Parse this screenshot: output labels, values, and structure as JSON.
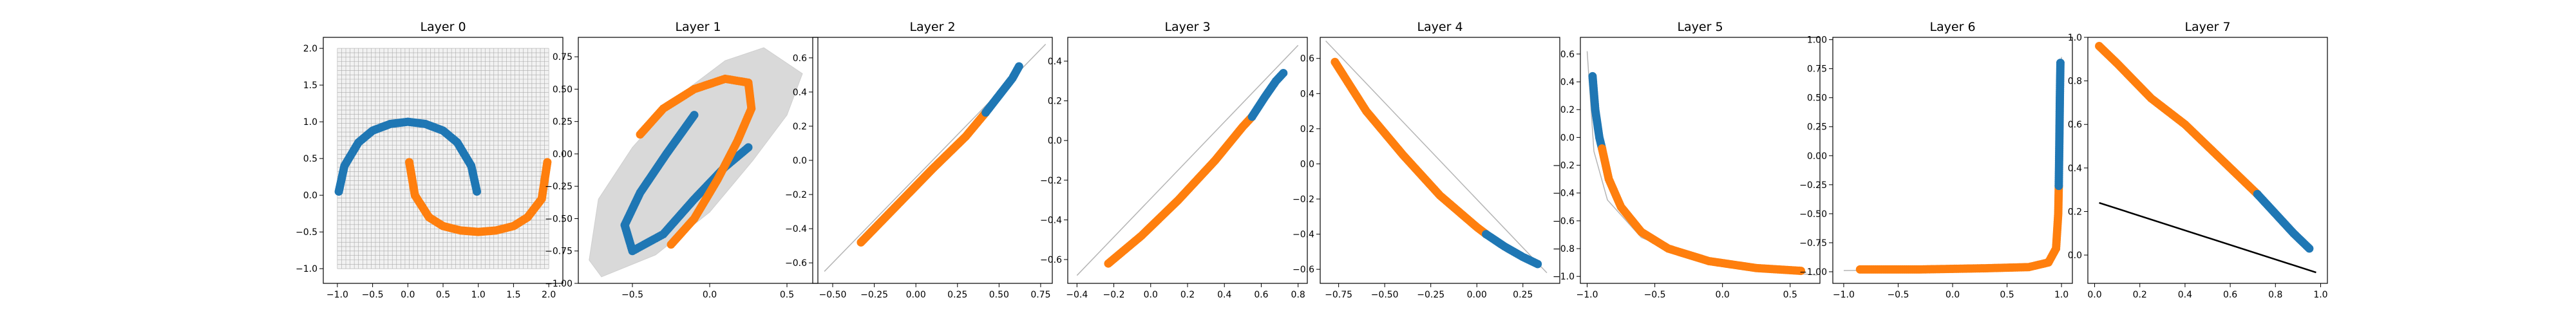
{
  "figure": {
    "colors": {
      "class_a": "#1f77b4",
      "class_b": "#ff7f0e",
      "grid_fill": "#d9d9d9",
      "grid_line": "#aaaaaa",
      "boundary": "#000000"
    }
  },
  "chart_data": [
    {
      "type": "scatter",
      "title": "Layer 0",
      "xlim": [
        -1.2,
        2.2
      ],
      "ylim": [
        -1.2,
        2.15
      ],
      "xticks": [
        -1.0,
        -0.5,
        0.0,
        0.5,
        1.0,
        1.5,
        2.0
      ],
      "xtick_labels": [
        "−1.0",
        "−0.5",
        "0.0",
        "0.5",
        "1.0",
        "1.5",
        "2.0"
      ],
      "yticks": [
        -1.0,
        -0.5,
        0.0,
        0.5,
        1.0,
        1.5,
        2.0
      ],
      "ytick_labels": [
        "−1.0",
        "−0.5",
        "0.0",
        "0.5",
        "1.0",
        "1.5",
        "2.0"
      ],
      "grid_region": {
        "x": [
          -1.0,
          2.0
        ],
        "y": [
          -1.0,
          2.0
        ]
      },
      "series": [
        {
          "color": "blue",
          "points": [
            [
              -0.98,
              0.05
            ],
            [
              -0.9,
              0.4
            ],
            [
              -0.7,
              0.72
            ],
            [
              -0.5,
              0.88
            ],
            [
              -0.25,
              0.97
            ],
            [
              0.0,
              1.0
            ],
            [
              0.25,
              0.97
            ],
            [
              0.5,
              0.88
            ],
            [
              0.7,
              0.72
            ],
            [
              0.9,
              0.4
            ],
            [
              0.98,
              0.05
            ]
          ]
        },
        {
          "color": "orange",
          "points": [
            [
              0.02,
              0.45
            ],
            [
              0.1,
              0.0
            ],
            [
              0.3,
              -0.3
            ],
            [
              0.5,
              -0.42
            ],
            [
              0.75,
              -0.48
            ],
            [
              1.0,
              -0.5
            ],
            [
              1.25,
              -0.48
            ],
            [
              1.5,
              -0.42
            ],
            [
              1.7,
              -0.3
            ],
            [
              1.9,
              -0.05
            ],
            [
              1.98,
              0.45
            ]
          ]
        }
      ]
    },
    {
      "type": "scatter",
      "title": "Layer 1",
      "xlim": [
        -0.85,
        0.7
      ],
      "ylim": [
        -1.0,
        0.9
      ],
      "xticks": [
        -0.5,
        0.0,
        0.5
      ],
      "xtick_labels": [
        "−0.5",
        "0.0",
        "0.5"
      ],
      "yticks": [
        -1.0,
        -0.75,
        -0.5,
        -0.25,
        0.0,
        0.25,
        0.5,
        0.75
      ],
      "ytick_labels": [
        "−1.00",
        "−0.75",
        "−0.50",
        "−0.25",
        "0.00",
        "0.25",
        "0.50",
        "0.75"
      ],
      "grid_polygon": [
        [
          -0.78,
          -0.82
        ],
        [
          -0.72,
          -0.35
        ],
        [
          -0.5,
          0.05
        ],
        [
          -0.2,
          0.45
        ],
        [
          0.1,
          0.72
        ],
        [
          0.35,
          0.82
        ],
        [
          0.6,
          0.62
        ],
        [
          0.5,
          0.3
        ],
        [
          0.28,
          -0.05
        ],
        [
          0.0,
          -0.45
        ],
        [
          -0.35,
          -0.78
        ],
        [
          -0.7,
          -0.95
        ]
      ],
      "series": [
        {
          "color": "blue",
          "points": [
            [
              -0.1,
              0.3
            ],
            [
              -0.28,
              0.0
            ],
            [
              -0.45,
              -0.3
            ],
            [
              -0.55,
              -0.55
            ],
            [
              -0.5,
              -0.75
            ],
            [
              -0.3,
              -0.62
            ],
            [
              -0.1,
              -0.35
            ],
            [
              0.1,
              -0.1
            ],
            [
              0.25,
              0.05
            ]
          ]
        },
        {
          "color": "orange",
          "points": [
            [
              -0.45,
              0.15
            ],
            [
              -0.3,
              0.35
            ],
            [
              -0.1,
              0.5
            ],
            [
              0.1,
              0.58
            ],
            [
              0.25,
              0.55
            ],
            [
              0.27,
              0.35
            ],
            [
              0.18,
              0.1
            ],
            [
              0.05,
              -0.2
            ],
            [
              -0.1,
              -0.5
            ],
            [
              -0.25,
              -0.7
            ]
          ]
        }
      ]
    },
    {
      "type": "line",
      "title": "Layer 2",
      "xlim": [
        -0.62,
        0.82
      ],
      "ylim": [
        -0.72,
        0.72
      ],
      "xticks": [
        -0.5,
        -0.25,
        0.0,
        0.25,
        0.5,
        0.75
      ],
      "xtick_labels": [
        "−0.50",
        "−0.25",
        "0.00",
        "0.25",
        "0.50",
        "0.75"
      ],
      "yticks": [
        -0.6,
        -0.4,
        -0.2,
        0.0,
        0.2,
        0.4,
        0.6
      ],
      "ytick_labels": [
        "−0.6",
        "−0.4",
        "−0.2",
        "0.0",
        "0.2",
        "0.4",
        "0.6"
      ],
      "guide_line": [
        [
          -0.55,
          -0.65
        ],
        [
          0.78,
          0.68
        ]
      ],
      "series": [
        {
          "color": "orange",
          "points": [
            [
              -0.33,
              -0.48
            ],
            [
              -0.1,
              -0.25
            ],
            [
              0.1,
              -0.05
            ],
            [
              0.3,
              0.14
            ],
            [
              0.42,
              0.28
            ]
          ]
        },
        {
          "color": "blue",
          "points": [
            [
              0.42,
              0.28
            ],
            [
              0.5,
              0.38
            ],
            [
              0.58,
              0.48
            ],
            [
              0.62,
              0.55
            ]
          ]
        }
      ]
    },
    {
      "type": "line",
      "title": "Layer 3",
      "xlim": [
        -0.45,
        0.85
      ],
      "ylim": [
        -0.72,
        0.52
      ],
      "xticks": [
        -0.4,
        -0.2,
        0.0,
        0.2,
        0.4,
        0.6,
        0.8
      ],
      "xtick_labels": [
        "−0.4",
        "−0.2",
        "0.0",
        "0.2",
        "0.4",
        "0.6",
        "0.8"
      ],
      "yticks": [
        -0.6,
        -0.4,
        -0.2,
        0.0,
        0.2,
        0.4
      ],
      "ytick_labels": [
        "−0.6",
        "−0.4",
        "−0.2",
        "0.0",
        "0.2",
        "0.4"
      ],
      "guide_line": [
        [
          -0.4,
          -0.68
        ],
        [
          0.8,
          0.48
        ]
      ],
      "series": [
        {
          "color": "orange",
          "points": [
            [
              -0.23,
              -0.62
            ],
            [
              -0.05,
              -0.48
            ],
            [
              0.15,
              -0.3
            ],
            [
              0.35,
              -0.1
            ],
            [
              0.5,
              0.07
            ],
            [
              0.55,
              0.12
            ]
          ]
        },
        {
          "color": "blue",
          "points": [
            [
              0.55,
              0.12
            ],
            [
              0.62,
              0.22
            ],
            [
              0.68,
              0.3
            ],
            [
              0.72,
              0.34
            ]
          ]
        }
      ]
    },
    {
      "type": "line",
      "title": "Layer 4",
      "xlim": [
        -0.85,
        0.45
      ],
      "ylim": [
        -0.68,
        0.72
      ],
      "xticks": [
        -0.75,
        -0.5,
        -0.25,
        0.0,
        0.25
      ],
      "xtick_labels": [
        "−0.75",
        "−0.50",
        "−0.25",
        "0.00",
        "0.25"
      ],
      "yticks": [
        -0.6,
        -0.4,
        -0.2,
        0.0,
        0.2,
        0.4,
        0.6
      ],
      "ytick_labels": [
        "−0.6",
        "−0.4",
        "−0.2",
        "0.0",
        "0.2",
        "0.4",
        "0.6"
      ],
      "guide_line": [
        [
          -0.82,
          0.7
        ],
        [
          0.38,
          -0.62
        ]
      ],
      "series": [
        {
          "color": "orange",
          "points": [
            [
              -0.77,
              0.58
            ],
            [
              -0.6,
              0.3
            ],
            [
              -0.4,
              0.05
            ],
            [
              -0.2,
              -0.18
            ],
            [
              0.0,
              -0.36
            ],
            [
              0.05,
              -0.4
            ]
          ]
        },
        {
          "color": "blue",
          "points": [
            [
              0.05,
              -0.4
            ],
            [
              0.15,
              -0.47
            ],
            [
              0.25,
              -0.53
            ],
            [
              0.33,
              -0.57
            ]
          ]
        }
      ]
    },
    {
      "type": "line",
      "title": "Layer 5",
      "xlim": [
        -1.05,
        0.72
      ],
      "ylim": [
        -1.05,
        0.72
      ],
      "xticks": [
        -1.0,
        -0.5,
        0.0,
        0.5
      ],
      "xtick_labels": [
        "−1.0",
        "−0.5",
        "0.0",
        "0.5"
      ],
      "yticks": [
        -1.0,
        -0.8,
        -0.6,
        -0.4,
        -0.2,
        0.0,
        0.2,
        0.4,
        0.6
      ],
      "ytick_labels": [
        "−1.0",
        "−0.8",
        "−0.6",
        "−0.4",
        "−0.2",
        "0.0",
        "0.2",
        "0.4",
        "0.6"
      ],
      "guide_line": [
        [
          -1.0,
          0.62
        ],
        [
          -0.95,
          -0.1
        ],
        [
          -0.85,
          -0.45
        ],
        [
          -0.6,
          -0.72
        ],
        [
          -0.2,
          -0.88
        ],
        [
          0.3,
          -0.96
        ],
        [
          0.7,
          -0.99
        ]
      ],
      "series": [
        {
          "color": "blue",
          "points": [
            [
              -0.96,
              0.44
            ],
            [
              -0.94,
              0.2
            ],
            [
              -0.91,
              0.0
            ],
            [
              -0.89,
              -0.08
            ]
          ]
        },
        {
          "color": "orange",
          "points": [
            [
              -0.89,
              -0.08
            ],
            [
              -0.84,
              -0.3
            ],
            [
              -0.75,
              -0.5
            ],
            [
              -0.6,
              -0.68
            ],
            [
              -0.4,
              -0.8
            ],
            [
              -0.1,
              -0.89
            ],
            [
              0.25,
              -0.94
            ],
            [
              0.58,
              -0.96
            ]
          ]
        }
      ]
    },
    {
      "type": "line",
      "title": "Layer 6",
      "xlim": [
        -1.1,
        1.1
      ],
      "ylim": [
        -1.1,
        1.02
      ],
      "xticks": [
        -1.0,
        -0.5,
        0.0,
        0.5,
        1.0
      ],
      "xtick_labels": [
        "−1.0",
        "−0.5",
        "0.0",
        "0.5",
        "1.0"
      ],
      "yticks": [
        -1.0,
        -0.75,
        -0.5,
        -0.25,
        0.0,
        0.25,
        0.5,
        0.75,
        1.0
      ],
      "ytick_labels": [
        "−1.00",
        "−0.75",
        "−0.50",
        "−0.25",
        "0.00",
        "0.25",
        "0.50",
        "0.75",
        "1.00"
      ],
      "guide_line": [
        [
          -1.0,
          -0.99
        ],
        [
          0.5,
          -0.97
        ],
        [
          0.9,
          -0.9
        ],
        [
          0.97,
          -0.6
        ],
        [
          0.99,
          0.0
        ],
        [
          1.0,
          0.85
        ]
      ],
      "series": [
        {
          "color": "orange",
          "points": [
            [
              -0.85,
              -0.98
            ],
            [
              -0.3,
              -0.98
            ],
            [
              0.3,
              -0.97
            ],
            [
              0.7,
              -0.96
            ],
            [
              0.88,
              -0.92
            ],
            [
              0.95,
              -0.8
            ],
            [
              0.97,
              -0.5
            ],
            [
              0.975,
              -0.26
            ]
          ]
        },
        {
          "color": "blue",
          "points": [
            [
              0.975,
              -0.26
            ],
            [
              0.98,
              0.1
            ],
            [
              0.985,
              0.5
            ],
            [
              0.99,
              0.8
            ]
          ]
        }
      ]
    },
    {
      "type": "line",
      "title": "Layer 7",
      "xlim": [
        -0.03,
        1.03
      ],
      "ylim": [
        -0.13,
        1.0
      ],
      "xticks": [
        0.0,
        0.2,
        0.4,
        0.6,
        0.8,
        1.0
      ],
      "xtick_labels": [
        "0.0",
        "0.2",
        "0.4",
        "0.6",
        "0.8",
        "1.0"
      ],
      "yticks": [
        0.0,
        0.2,
        0.4,
        0.6,
        0.8,
        1.0
      ],
      "ytick_labels": [
        "0.0",
        "0.2",
        "0.4",
        "0.6",
        "0.8",
        "1.0"
      ],
      "boundary_line": [
        [
          0.02,
          0.24
        ],
        [
          0.98,
          -0.08
        ]
      ],
      "series": [
        {
          "color": "orange",
          "points": [
            [
              0.02,
              0.96
            ],
            [
              0.1,
              0.88
            ],
            [
              0.25,
              0.72
            ],
            [
              0.4,
              0.6
            ],
            [
              0.55,
              0.45
            ],
            [
              0.7,
              0.3
            ],
            [
              0.72,
              0.28
            ]
          ]
        },
        {
          "color": "blue",
          "points": [
            [
              0.72,
              0.28
            ],
            [
              0.8,
              0.19
            ],
            [
              0.88,
              0.1
            ],
            [
              0.95,
              0.03
            ]
          ]
        }
      ]
    }
  ]
}
